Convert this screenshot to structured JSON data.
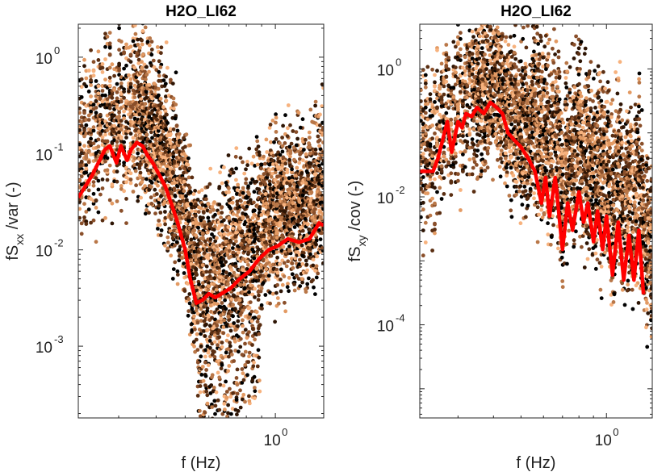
{
  "chart_data": [
    {
      "type": "scatter",
      "title": "H2O_LI62",
      "xlabel": "f (Hz)",
      "ylabel": {
        "main": "fS",
        "sub": "xx",
        "suffix": " /var (-)"
      },
      "xscale": "log",
      "yscale": "log",
      "xlim": [
        0.22,
        1.45
      ],
      "ylim": [
        0.00018,
        2.2
      ],
      "x_ticks": [
        {
          "value": 1,
          "base": "10",
          "exp": "0"
        }
      ],
      "y_ticks": [
        {
          "value": 1,
          "base": "10",
          "exp": "0"
        },
        {
          "value": 0.1,
          "base": "10",
          "exp": "-1"
        },
        {
          "value": 0.01,
          "base": "10",
          "exp": "-2"
        },
        {
          "value": 0.001,
          "base": "10",
          "exp": "-3"
        }
      ],
      "scatter_colors": [
        "#000000",
        "#2e1505",
        "#5a2e12",
        "#8a4f2a",
        "#b97748",
        "#e39a63",
        "#f7b27e"
      ],
      "line_color": "#ff0000",
      "mean_line": {
        "x": [
          0.22,
          0.245,
          0.27,
          0.28,
          0.295,
          0.305,
          0.32,
          0.33,
          0.345,
          0.36,
          0.375,
          0.39,
          0.41,
          0.43,
          0.45,
          0.47,
          0.5,
          0.52,
          0.545,
          0.57,
          0.6,
          0.63,
          0.67,
          0.71,
          0.76,
          0.82,
          0.88,
          0.95,
          1.02,
          1.1,
          1.2,
          1.3,
          1.4,
          1.45
        ],
        "y": [
          0.035,
          0.06,
          0.11,
          0.12,
          0.08,
          0.12,
          0.085,
          0.11,
          0.13,
          0.12,
          0.095,
          0.08,
          0.06,
          0.045,
          0.03,
          0.02,
          0.01,
          0.005,
          0.0028,
          0.003,
          0.0035,
          0.0032,
          0.0036,
          0.004,
          0.005,
          0.006,
          0.008,
          0.01,
          0.011,
          0.013,
          0.012,
          0.013,
          0.019,
          0.018
        ]
      }
    },
    {
      "type": "scatter",
      "title": "H2O_LI62",
      "xlabel": "f (Hz)",
      "ylabel": {
        "main": "fS",
        "sub": "xy",
        "suffix": " /cov (-)"
      },
      "xscale": "log",
      "yscale": "log",
      "xlim": [
        0.22,
        1.45
      ],
      "ylim": [
        3.5e-06,
        5
      ],
      "x_ticks": [
        {
          "value": 1,
          "base": "10",
          "exp": "0"
        }
      ],
      "y_ticks": [
        {
          "value": 1,
          "base": "10",
          "exp": "0"
        },
        {
          "value": 0.01,
          "base": "10",
          "exp": "-2"
        },
        {
          "value": 0.0001,
          "base": "10",
          "exp": "-4"
        }
      ],
      "scatter_colors": [
        "#000000",
        "#2e1505",
        "#5a2e12",
        "#8a4f2a",
        "#b97748",
        "#e39a63",
        "#f7b27e"
      ],
      "line_color": "#ff0000",
      "mean_line": {
        "x": [
          0.22,
          0.245,
          0.255,
          0.275,
          0.285,
          0.3,
          0.31,
          0.32,
          0.335,
          0.35,
          0.37,
          0.39,
          0.41,
          0.43,
          0.45,
          0.47,
          0.5,
          0.53,
          0.56,
          0.59,
          0.61,
          0.63,
          0.66,
          0.7,
          0.73,
          0.76,
          0.8,
          0.83,
          0.86,
          0.9,
          0.93,
          0.97,
          1.0,
          1.05,
          1.1,
          1.15,
          1.2,
          1.25,
          1.3,
          1.35
        ],
        "y": [
          0.025,
          0.025,
          0.04,
          0.15,
          0.05,
          0.15,
          0.12,
          0.2,
          0.18,
          0.25,
          0.2,
          0.3,
          0.25,
          0.2,
          0.1,
          0.08,
          0.06,
          0.04,
          0.025,
          0.008,
          0.02,
          0.005,
          0.02,
          0.0015,
          0.008,
          0.003,
          0.012,
          0.004,
          0.008,
          0.002,
          0.006,
          0.0015,
          0.005,
          0.0006,
          0.004,
          0.0005,
          0.0025,
          0.0005,
          0.003,
          0.0003
        ]
      }
    }
  ]
}
